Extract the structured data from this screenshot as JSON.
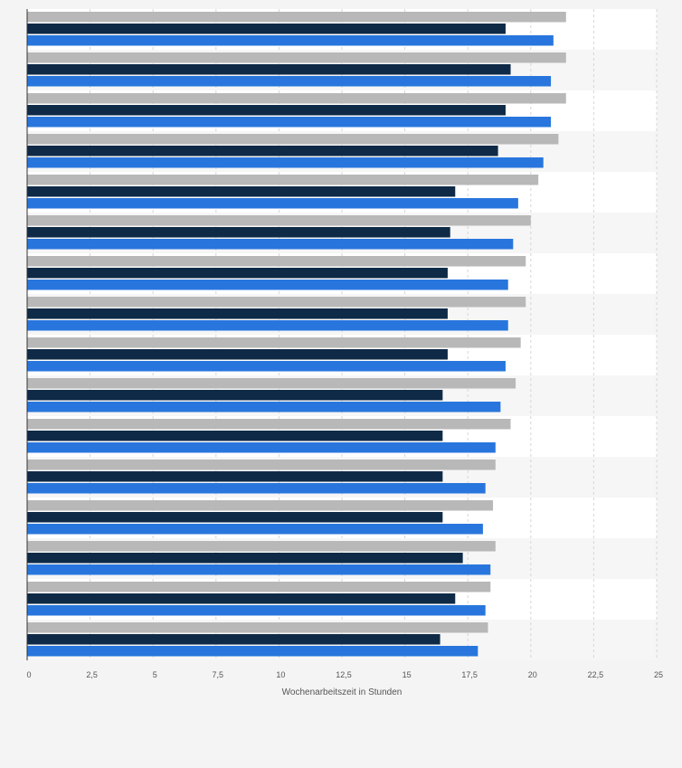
{
  "chart_data": {
    "type": "bar",
    "orientation": "horizontal",
    "xlabel": "Wochenarbeitszeit in Stunden",
    "ylabel": "",
    "xlim": [
      0,
      25
    ],
    "x_ticks": [
      "0",
      "2,5",
      "5",
      "7,5",
      "10",
      "12,5",
      "15",
      "17,5",
      "20",
      "22,5",
      "25"
    ],
    "x_tick_values": [
      0,
      2.5,
      5,
      7.5,
      10,
      12.5,
      15,
      17.5,
      20,
      22.5,
      25
    ],
    "grid": "vertical dashed",
    "categories": [
      "",
      "",
      "",
      "",
      "",
      "",
      "",
      "",
      "",
      "",
      "",
      "",
      "",
      "",
      "",
      ""
    ],
    "series": [
      {
        "color": "#b8b8b8",
        "values": [
          21.4,
          21.4,
          21.4,
          21.1,
          20.3,
          20.0,
          19.8,
          19.8,
          19.6,
          19.4,
          19.2,
          18.6,
          18.5,
          18.6,
          18.4,
          18.3
        ]
      },
      {
        "color": "#0e2a47",
        "values": [
          19.0,
          19.2,
          19.0,
          18.7,
          17.0,
          16.8,
          16.7,
          16.7,
          16.7,
          16.5,
          16.5,
          16.5,
          16.5,
          17.3,
          17.0,
          16.4
        ]
      },
      {
        "color": "#2876dd",
        "values": [
          20.9,
          20.8,
          20.8,
          20.5,
          19.5,
          19.3,
          19.1,
          19.1,
          19.0,
          18.8,
          18.6,
          18.2,
          18.1,
          18.4,
          18.2,
          17.9
        ]
      }
    ]
  }
}
